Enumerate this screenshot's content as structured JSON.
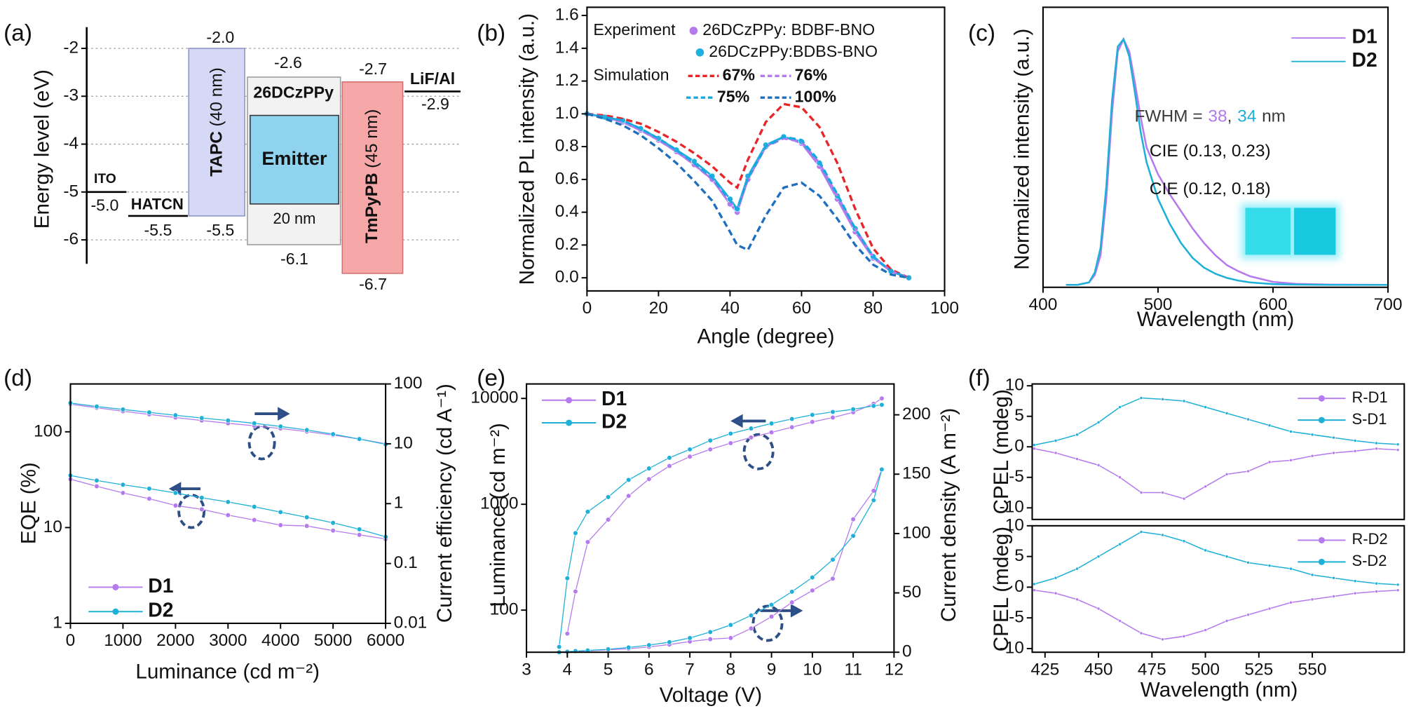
{
  "chart_data": [
    {
      "type": "energy-diagram",
      "panel_label": "(a)",
      "y_label": "Energy level (eV)",
      "ylim": [
        -6.5,
        -1.5
      ],
      "yticks": [
        -2,
        -3,
        -4,
        -5,
        -6
      ],
      "grid": true,
      "layers": [
        {
          "name": "ITO",
          "values": [
            -5.0
          ],
          "value_labels": [
            "-5.0"
          ]
        },
        {
          "name": "HATCN",
          "values": [
            -5.5
          ],
          "value_labels": [
            "-5.5"
          ]
        },
        {
          "name": "TAPC",
          "thickness": "(40 nm)",
          "color": "#d6d9f5",
          "values": [
            -2.0,
            -5.5
          ],
          "value_labels": [
            "-2.0",
            "-5.5"
          ]
        },
        {
          "name": "26DCzPPy",
          "color": "#f2f2f2",
          "values": [
            -2.6,
            -6.1
          ],
          "value_labels": [
            "-2.6",
            "-6.1"
          ]
        },
        {
          "name": "Emitter",
          "thickness": "20 nm",
          "color": "#8fd3ee",
          "values": [
            -3.4,
            -5.25
          ]
        },
        {
          "name": "TmPyPB",
          "thickness": "(45 nm)",
          "color": "#f5a8a7",
          "values": [
            -2.7,
            -6.7
          ],
          "value_labels": [
            "-2.7",
            "-6.7"
          ]
        },
        {
          "name": "LiF/Al",
          "values": [
            -2.9
          ],
          "value_labels": [
            "-2.9"
          ]
        }
      ]
    },
    {
      "type": "line",
      "panel_label": "(b)",
      "x_label": "Angle (degree)",
      "y_label": "Normalized PL intensity (a.u.)",
      "xlim": [
        0,
        100
      ],
      "ylim": [
        -0.08,
        1.65
      ],
      "xticks": [
        0,
        20,
        40,
        60,
        80,
        100
      ],
      "yticks": [
        {
          "value": 0,
          "label": "0.0"
        },
        0.2,
        0.4,
        0.6,
        0.8,
        {
          "value": 1,
          "label": "1.0"
        },
        1.2,
        1.4,
        1.6
      ],
      "legend_titles": [
        "Experiment",
        "Simulation"
      ],
      "x": [
        0,
        5,
        10,
        15,
        20,
        25,
        30,
        35,
        40,
        42,
        45,
        50,
        55,
        60,
        65,
        70,
        75,
        80,
        85,
        90
      ],
      "series": [
        {
          "name": "26DCzPPy: BDBF-BNO",
          "color": "#b57bee",
          "marker": "circle",
          "values": [
            1.0,
            0.98,
            0.95,
            0.9,
            0.84,
            0.77,
            0.69,
            0.6,
            0.45,
            0.4,
            0.6,
            0.8,
            0.86,
            0.82,
            0.68,
            0.48,
            0.28,
            0.12,
            0.04,
            0.0
          ]
        },
        {
          "name": "26DCzPPy:BDBS-BNO",
          "color": "#1fb0e0",
          "marker": "circle",
          "values": [
            1.0,
            0.98,
            0.96,
            0.91,
            0.85,
            0.78,
            0.71,
            0.62,
            0.48,
            0.42,
            0.62,
            0.81,
            0.86,
            0.83,
            0.7,
            0.5,
            0.3,
            0.13,
            0.04,
            0.0
          ]
        },
        {
          "name": "67%",
          "color": "#e8262a",
          "line_style": "dashed",
          "values": [
            1.0,
            0.99,
            0.97,
            0.94,
            0.89,
            0.83,
            0.76,
            0.68,
            0.58,
            0.55,
            0.72,
            0.95,
            1.06,
            1.04,
            0.92,
            0.7,
            0.42,
            0.18,
            0.05,
            0.0
          ]
        },
        {
          "name": "76%",
          "color": "#b57bee",
          "line_style": "dashed",
          "values": [
            1.0,
            0.98,
            0.95,
            0.9,
            0.84,
            0.77,
            0.69,
            0.6,
            0.47,
            0.42,
            0.6,
            0.8,
            0.85,
            0.83,
            0.7,
            0.5,
            0.3,
            0.13,
            0.04,
            0.0
          ]
        },
        {
          "name": "75%",
          "color": "#1aa7e0",
          "line_style": "dashed",
          "values": [
            1.0,
            0.98,
            0.96,
            0.91,
            0.85,
            0.78,
            0.7,
            0.61,
            0.47,
            0.42,
            0.61,
            0.8,
            0.86,
            0.84,
            0.71,
            0.51,
            0.3,
            0.13,
            0.04,
            0.0
          ]
        },
        {
          "name": "100%",
          "color": "#1f6fbf",
          "line_style": "dashed",
          "values": [
            1.0,
            0.97,
            0.93,
            0.87,
            0.79,
            0.7,
            0.59,
            0.47,
            0.28,
            0.2,
            0.17,
            0.38,
            0.55,
            0.58,
            0.5,
            0.36,
            0.2,
            0.08,
            0.02,
            0.0
          ]
        }
      ]
    },
    {
      "type": "line",
      "panel_label": "(c)",
      "x_label": "Wavelength (nm)",
      "y_label": "Normalized intensity (a.u.)",
      "xlim": [
        400,
        700
      ],
      "ylim": [
        -0.01,
        1.13
      ],
      "xticks": [
        400,
        500,
        600,
        700
      ],
      "fwhm": {
        "label": "FWHM =",
        "values": [
          38,
          34
        ],
        "separator": ",",
        "unit": "nm"
      },
      "cie": [
        "CIE (0.13, 0.23)",
        "CIE (0.12, 0.18)"
      ],
      "x": [
        420,
        430,
        440,
        445,
        450,
        455,
        460,
        465,
        470,
        475,
        480,
        485,
        490,
        500,
        510,
        520,
        530,
        540,
        550,
        560,
        570,
        580,
        600,
        620,
        650,
        700
      ],
      "series": [
        {
          "name": "D1",
          "color": "#b57bee",
          "values": [
            0,
            0,
            0.01,
            0.04,
            0.12,
            0.35,
            0.7,
            0.95,
            1.0,
            0.95,
            0.82,
            0.68,
            0.56,
            0.45,
            0.37,
            0.3,
            0.23,
            0.17,
            0.12,
            0.08,
            0.055,
            0.035,
            0.012,
            0.004,
            0.001,
            0
          ]
        },
        {
          "name": "D2",
          "color": "#1fb0d8",
          "values": [
            0,
            0,
            0.01,
            0.05,
            0.15,
            0.4,
            0.75,
            0.97,
            1.0,
            0.93,
            0.78,
            0.62,
            0.5,
            0.35,
            0.25,
            0.17,
            0.11,
            0.07,
            0.045,
            0.028,
            0.017,
            0.01,
            0.003,
            0.001,
            0,
            0
          ]
        }
      ]
    },
    {
      "type": "line",
      "panel_label": "(d)",
      "x_label": "Luminance (cd m⁻²)",
      "y_label": "EQE (%)",
      "y2_label": "Current efficiency (cd A⁻¹)",
      "xlim": [
        0,
        6000
      ],
      "ylim": [
        1,
        316
      ],
      "y2lim": [
        0.01,
        100
      ],
      "yscale": "log",
      "y2scale": "log",
      "xticks": [
        0,
        1000,
        2000,
        3000,
        4000,
        5000,
        6000
      ],
      "yticks": [
        1,
        10,
        100
      ],
      "y2ticks": [
        0.01,
        0.1,
        1,
        10,
        100
      ],
      "x": [
        0,
        500,
        1000,
        1500,
        2000,
        2500,
        3000,
        3500,
        4000,
        4500,
        5000,
        5500,
        6000
      ],
      "series": [
        {
          "name": "D1",
          "color": "#b57bee",
          "marker": "circle",
          "values": [
            32,
            27,
            23,
            20,
            17,
            15.5,
            13.5,
            12,
            10.6,
            10.4,
            9.3,
            8.4,
            7.6
          ]
        },
        {
          "name": "D2",
          "color": "#1fb0d8",
          "marker": "circle",
          "values": [
            35,
            31,
            28,
            25.5,
            23,
            20.5,
            18.5,
            16.5,
            14.5,
            12.8,
            11.2,
            9.6,
            8.0
          ]
        },
        {
          "color": "#b57bee",
          "marker": "circle",
          "axis": "y2",
          "values": [
            46,
            40,
            35,
            31,
            27.5,
            24.5,
            22,
            20,
            18,
            16,
            14,
            12,
            10
          ]
        },
        {
          "color": "#1fb0d8",
          "marker": "circle",
          "axis": "y2",
          "values": [
            48,
            42,
            37.5,
            33.5,
            30,
            27,
            24.5,
            22,
            19.5,
            17,
            14.5,
            12,
            9.8
          ]
        }
      ]
    },
    {
      "type": "line",
      "panel_label": "(e)",
      "x_label": "Voltage (V)",
      "y_label": "Luminance (cd m⁻²)",
      "y2_label": "Current density (A m⁻²)",
      "xlim": [
        3,
        12
      ],
      "ylim": [
        40,
        13700
      ],
      "y2lim": [
        0,
        226
      ],
      "yscale": "log",
      "xticks": [
        3,
        4,
        5,
        6,
        7,
        8,
        9,
        10,
        11,
        12
      ],
      "yticks": [
        100,
        1000,
        10000
      ],
      "y2ticks": [
        0,
        50,
        100,
        150,
        200
      ],
      "x": [
        3.8,
        4.0,
        4.2,
        4.5,
        5,
        5.5,
        6,
        6.5,
        7,
        7.5,
        8,
        8.5,
        9,
        9.5,
        10,
        10.5,
        11,
        11.5,
        11.7
      ],
      "series": [
        {
          "name": "D1",
          "color": "#b57bee",
          "marker": "circle",
          "values": [
            null,
            60,
            150,
            440,
            716,
            1200,
            1730,
            2300,
            2820,
            3300,
            3780,
            4280,
            4780,
            5350,
            6000,
            6600,
            7400,
            8900,
            10000
          ]
        },
        {
          "name": "D2",
          "color": "#1fb0d8",
          "marker": "circle",
          "values": [
            45,
            200,
            534,
            850,
            1170,
            1700,
            2180,
            2750,
            3300,
            4000,
            4650,
            5200,
            5800,
            6400,
            7000,
            7450,
            7900,
            8500,
            8700
          ]
        },
        {
          "color": "#b57bee",
          "marker": "circle",
          "axis": "y2",
          "values": [
            null,
            0.5,
            0.8,
            1.2,
            2,
            3,
            4.5,
            6.5,
            9,
            11,
            12,
            20,
            30,
            42,
            52,
            62,
            112,
            136,
            154
          ]
        },
        {
          "color": "#1fb0d8",
          "marker": "circle",
          "axis": "y2",
          "values": [
            0,
            0.5,
            1,
            1.5,
            2.5,
            4,
            6,
            8.5,
            12,
            17,
            23,
            31,
            40,
            51,
            63,
            78,
            98,
            128,
            154
          ]
        }
      ]
    },
    {
      "type": "line",
      "panel_label": "(f)",
      "y_label": "CPEL (mdeg)",
      "xlim": [
        419,
        593
      ],
      "ylim": [
        -11.9,
        10.3
      ],
      "yticks": [
        -10,
        -5,
        0,
        5,
        10
      ],
      "x": [
        420,
        430,
        440,
        450,
        460,
        470,
        480,
        490,
        500,
        510,
        520,
        530,
        540,
        550,
        560,
        570,
        580,
        590
      ],
      "series": [
        {
          "name": "R-D1",
          "color": "#b57bee",
          "marker": "circle",
          "values": [
            -0.3,
            -1,
            -2,
            -3,
            -5,
            -7.5,
            -7.5,
            -8.5,
            -6.5,
            -4.5,
            -4,
            -2.5,
            -2.2,
            -1.5,
            -1,
            -0.7,
            -0.3,
            -0.5
          ]
        },
        {
          "name": "S-D1",
          "color": "#1fb0d8",
          "marker": "circle",
          "values": [
            0.3,
            1,
            2,
            4,
            6.5,
            8,
            7.8,
            7.5,
            6.5,
            5.5,
            4.5,
            3.5,
            2.5,
            2,
            1.5,
            1,
            0.6,
            0.4
          ]
        }
      ]
    },
    {
      "type": "line",
      "x_label": "Wavelength (nm)",
      "y_label": "CPEL (mdeg)",
      "xlim": [
        419,
        593
      ],
      "ylim": [
        -10.6,
        10
      ],
      "xticks": [
        425,
        450,
        475,
        500,
        525,
        550
      ],
      "yticks": [
        -10,
        -5,
        0,
        5,
        10
      ],
      "x": [
        420,
        430,
        440,
        450,
        460,
        470,
        480,
        490,
        500,
        510,
        520,
        530,
        540,
        550,
        560,
        570,
        580,
        590
      ],
      "series": [
        {
          "name": "R-D2",
          "color": "#b57bee",
          "marker": "circle",
          "values": [
            -0.5,
            -1,
            -2,
            -3.5,
            -5.5,
            -7.5,
            -8.5,
            -8,
            -7,
            -5.5,
            -4.5,
            -3.5,
            -2.5,
            -2,
            -1.5,
            -1,
            -0.7,
            -0.5
          ]
        },
        {
          "name": "S-D2",
          "color": "#1fb0d8",
          "marker": "circle",
          "values": [
            0.5,
            1.5,
            3,
            5,
            7,
            9,
            8.5,
            7.5,
            6,
            5,
            4,
            3.5,
            3,
            2,
            1.5,
            1,
            0.6,
            0.4
          ]
        }
      ]
    }
  ]
}
